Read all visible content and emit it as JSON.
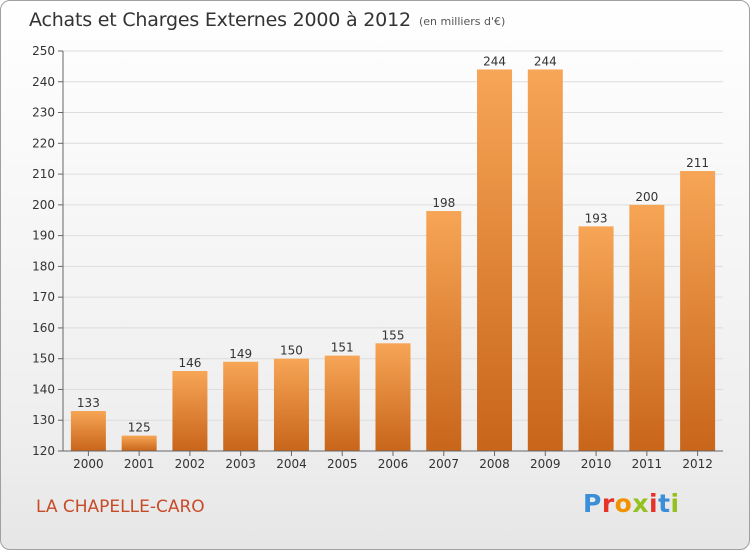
{
  "header": {
    "title": "Achats et Charges Externes 2000 à 2012",
    "subtitle": "(en milliers d'€)"
  },
  "footer": {
    "commune": "LA CHAPELLE-CARO",
    "logo_letters": [
      {
        "char": "P",
        "color": "#3b8ed8"
      },
      {
        "char": "r",
        "color": "#e6332a"
      },
      {
        "char": "o",
        "color": "#f39200"
      },
      {
        "char": "x",
        "color": "#95c11f"
      },
      {
        "char": "i",
        "color": "#e6332a"
      },
      {
        "char": "t",
        "color": "#3b8ed8"
      },
      {
        "char": "i",
        "color": "#95c11f"
      }
    ]
  },
  "chart_data": {
    "type": "bar",
    "title": "Achats et Charges Externes 2000 à 2012",
    "subtitle": "(en milliers d'€)",
    "categories": [
      "2000",
      "2001",
      "2002",
      "2003",
      "2004",
      "2005",
      "2006",
      "2007",
      "2008",
      "2009",
      "2010",
      "2011",
      "2012"
    ],
    "values": [
      133,
      125,
      146,
      149,
      150,
      151,
      155,
      198,
      244,
      244,
      193,
      200,
      211
    ],
    "data_labels": [
      "133",
      "125",
      "146",
      "149",
      "150",
      "151",
      "155",
      "198",
      "244",
      "244",
      "193",
      "200",
      "211"
    ],
    "ylim": [
      120,
      250
    ],
    "yticks": [
      120,
      130,
      140,
      150,
      160,
      170,
      180,
      190,
      200,
      210,
      220,
      230,
      240,
      250
    ],
    "xlabel": "",
    "ylabel": "",
    "grid": true,
    "legend": "none",
    "colors": {
      "bar_light": "#f7a556",
      "bar_dark": "#c8651a",
      "grid": "#dddddd",
      "axis": "#666666",
      "text": "#333333"
    }
  }
}
